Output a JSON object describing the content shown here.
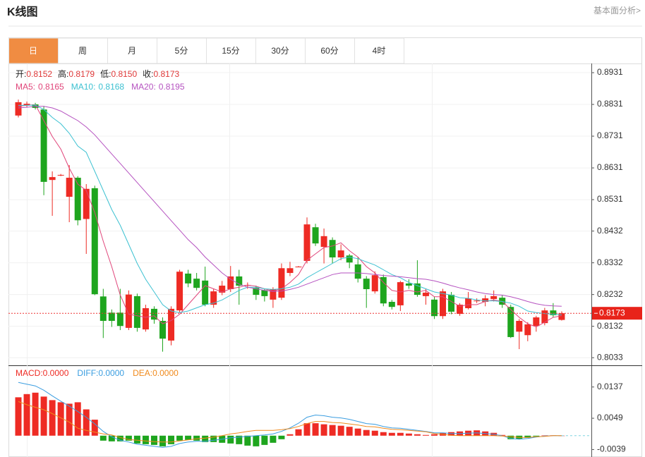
{
  "header": {
    "title": "K线图",
    "link": "基本面分析>"
  },
  "tabs": [
    "日",
    "周",
    "月",
    "5分",
    "15分",
    "30分",
    "60分",
    "4时"
  ],
  "active_tab": "日",
  "chart_data": [
    {
      "type": "candlestick",
      "info": [
        {
          "label": "开:",
          "value": "0.8152"
        },
        {
          "label": "高:",
          "value": "0.8179"
        },
        {
          "label": "低:",
          "value": "0.8150"
        },
        {
          "label": "收:",
          "value": "0.8173"
        }
      ],
      "up_color": "#ee2b24",
      "down_color": "#1ea51e",
      "open": [
        0.8796,
        0.8829,
        0.8831,
        0.8815,
        0.8593,
        0.8607,
        0.854,
        0.86,
        0.847,
        0.8567,
        0.8226,
        0.8175,
        0.8175,
        0.8127,
        0.8227,
        0.8122,
        0.8187,
        0.8149,
        0.8087,
        0.8182,
        0.8298,
        0.8282,
        0.8276,
        0.82,
        0.8238,
        0.8249,
        0.8289,
        0.826,
        0.8253,
        0.8246,
        0.8216,
        0.8222,
        0.83,
        0.832,
        0.8338,
        0.8444,
        0.8382,
        0.8404,
        0.8349,
        0.8355,
        0.8327,
        0.8282,
        0.8242,
        0.8287,
        0.8209,
        0.8198,
        0.8267,
        0.8267,
        0.8227,
        0.8216,
        0.8164,
        0.8231,
        0.8171,
        0.8189,
        0.8211,
        0.8209,
        0.8218,
        0.8222,
        0.8193,
        0.8115,
        0.8104,
        0.8133,
        0.8142,
        0.8182,
        0.8152
      ],
      "high": [
        0.8846,
        0.884,
        0.8836,
        0.8826,
        0.862,
        0.8612,
        0.864,
        0.8605,
        0.858,
        0.8575,
        0.825,
        0.8185,
        0.825,
        0.8245,
        0.8235,
        0.82,
        0.8195,
        0.816,
        0.8195,
        0.831,
        0.831,
        0.83,
        0.832,
        0.825,
        0.8275,
        0.8322,
        0.831,
        0.827,
        0.826,
        0.825,
        0.8255,
        0.833,
        0.8335,
        0.8322,
        0.8475,
        0.8455,
        0.844,
        0.8412,
        0.839,
        0.836,
        0.835,
        0.829,
        0.8305,
        0.8295,
        0.8215,
        0.8275,
        0.828,
        0.834,
        0.825,
        0.8225,
        0.825,
        0.824,
        0.8205,
        0.824,
        0.822,
        0.823,
        0.8245,
        0.823,
        0.82,
        0.8155,
        0.8145,
        0.8165,
        0.819,
        0.8205,
        0.8179
      ],
      "low": [
        0.879,
        0.8822,
        0.8815,
        0.8545,
        0.848,
        0.8605,
        0.846,
        0.845,
        0.836,
        0.823,
        0.8095,
        0.813,
        0.812,
        0.812,
        0.8115,
        0.8115,
        0.814,
        0.8052,
        0.8072,
        0.8175,
        0.8255,
        0.8245,
        0.8195,
        0.819,
        0.823,
        0.824,
        0.82,
        0.825,
        0.8215,
        0.821,
        0.819,
        0.8215,
        0.829,
        0.8318,
        0.833,
        0.8385,
        0.833,
        0.833,
        0.834,
        0.8315,
        0.827,
        0.819,
        0.8235,
        0.8195,
        0.8185,
        0.818,
        0.825,
        0.8225,
        0.82,
        0.8155,
        0.8155,
        0.817,
        0.8165,
        0.8185,
        0.8205,
        0.8195,
        0.821,
        0.819,
        0.8095,
        0.806,
        0.8085,
        0.8115,
        0.8135,
        0.816,
        0.815
      ],
      "close": [
        0.8838,
        0.8833,
        0.882,
        0.8587,
        0.8602,
        0.8609,
        0.86,
        0.8466,
        0.8565,
        0.8233,
        0.8149,
        0.8149,
        0.8133,
        0.8232,
        0.8127,
        0.8189,
        0.8153,
        0.8093,
        0.8187,
        0.8304,
        0.8267,
        0.8253,
        0.82,
        0.8242,
        0.826,
        0.8289,
        0.826,
        0.8262,
        0.8231,
        0.8227,
        0.8249,
        0.8315,
        0.8315,
        0.832,
        0.8453,
        0.8393,
        0.8416,
        0.8349,
        0.8371,
        0.8333,
        0.8282,
        0.8249,
        0.8293,
        0.8204,
        0.8193,
        0.8271,
        0.826,
        0.8231,
        0.8238,
        0.8164,
        0.8242,
        0.8178,
        0.82,
        0.822,
        0.8213,
        0.822,
        0.8227,
        0.82,
        0.8098,
        0.8149,
        0.8138,
        0.816,
        0.8182,
        0.8167,
        0.8173
      ],
      "series": [
        {
          "name": "MA5:",
          "current": "0.8165",
          "color": "#e0457a",
          "values": [
            0.8825,
            0.8828,
            0.883,
            0.878,
            0.873,
            0.869,
            0.863,
            0.858,
            0.856,
            0.849,
            0.84,
            0.832,
            0.823,
            0.817,
            0.8165,
            0.816,
            0.8165,
            0.814,
            0.815,
            0.817,
            0.82,
            0.823,
            0.826,
            0.825,
            0.824,
            0.825,
            0.8255,
            0.8262,
            0.8258,
            0.825,
            0.8243,
            0.825,
            0.827,
            0.8295,
            0.834,
            0.836,
            0.838,
            0.8385,
            0.8395,
            0.837,
            0.835,
            0.832,
            0.83,
            0.827,
            0.8245,
            0.824,
            0.8245,
            0.824,
            0.8245,
            0.8225,
            0.8225,
            0.821,
            0.8195,
            0.82,
            0.82,
            0.821,
            0.8215,
            0.821,
            0.8185,
            0.816,
            0.814,
            0.813,
            0.8145,
            0.816,
            0.8165
          ]
        },
        {
          "name": "MA10:",
          "current": "0.8168",
          "color": "#3cc1d1",
          "values": [
            0.8828,
            0.8828,
            0.8829,
            0.8815,
            0.879,
            0.877,
            0.874,
            0.87,
            0.868,
            0.862,
            0.856,
            0.85,
            0.845,
            0.839,
            0.833,
            0.828,
            0.824,
            0.82,
            0.818,
            0.8175,
            0.818,
            0.819,
            0.82,
            0.8205,
            0.8215,
            0.823,
            0.8245,
            0.8255,
            0.8255,
            0.825,
            0.8248,
            0.825,
            0.8255,
            0.8265,
            0.8285,
            0.83,
            0.8315,
            0.833,
            0.8345,
            0.835,
            0.8345,
            0.8335,
            0.8325,
            0.831,
            0.8295,
            0.8285,
            0.827,
            0.826,
            0.825,
            0.824,
            0.8235,
            0.823,
            0.8222,
            0.822,
            0.8215,
            0.8212,
            0.8212,
            0.821,
            0.8205,
            0.8195,
            0.818,
            0.8175,
            0.8172,
            0.817,
            0.8168
          ]
        },
        {
          "name": "MA20:",
          "current": "0.8195",
          "color": "#b552c0",
          "values": [
            0.882,
            0.8822,
            0.8825,
            0.8825,
            0.882,
            0.881,
            0.8795,
            0.878,
            0.876,
            0.8735,
            0.8705,
            0.8675,
            0.8645,
            0.8615,
            0.8585,
            0.8555,
            0.8525,
            0.8495,
            0.8465,
            0.8435,
            0.8405,
            0.838,
            0.835,
            0.8325,
            0.83,
            0.828,
            0.8265,
            0.8255,
            0.825,
            0.8245,
            0.8242,
            0.8243,
            0.8248,
            0.8255,
            0.8265,
            0.8275,
            0.8285,
            0.8295,
            0.83,
            0.83,
            0.83,
            0.8298,
            0.8295,
            0.8292,
            0.829,
            0.8288,
            0.8285,
            0.8282,
            0.828,
            0.8275,
            0.8268,
            0.826,
            0.8253,
            0.8247,
            0.824,
            0.8235,
            0.8232,
            0.823,
            0.8225,
            0.8218,
            0.821,
            0.8203,
            0.8198,
            0.8196,
            0.8195
          ]
        }
      ],
      "last_price": 0.8173,
      "ylim": [
        0.8009,
        0.896
      ],
      "yticks": [
        0.8931,
        0.8831,
        0.8731,
        0.8631,
        0.8531,
        0.8432,
        0.8332,
        0.8232,
        0.8132,
        0.8033
      ],
      "grid": true
    },
    {
      "type": "macd",
      "series": [
        {
          "name": "MACD:",
          "current": "0.0000",
          "color": "#ee2b24",
          "negative_color": "#1ea51e",
          "values": [
            0.0108,
            0.0117,
            0.0121,
            0.011,
            0.01,
            0.0094,
            0.009,
            0.0094,
            0.0074,
            0.0045,
            -0.0014,
            -0.0016,
            -0.0016,
            -0.0014,
            -0.0022,
            -0.0024,
            -0.0026,
            -0.003,
            -0.0024,
            -0.0014,
            -0.0012,
            -0.0014,
            -0.0018,
            -0.0018,
            -0.002,
            -0.0022,
            -0.0024,
            -0.0028,
            -0.003,
            -0.0026,
            -0.002,
            -0.001,
            0.0004,
            0.0018,
            0.0035,
            0.0035,
            0.0032,
            0.003,
            0.0028,
            0.0025,
            0.002,
            0.0016,
            0.0014,
            0.001,
            0.0008,
            0.0008,
            0.0006,
            0.0004,
            0.0002,
            0.0004,
            0.0008,
            0.001,
            0.0012,
            0.0014,
            0.0015,
            0.0012,
            0.0008,
            0.0002,
            -0.001,
            -0.001,
            -0.0006,
            -0.0002,
            0.0001,
            0.0001,
            0
          ]
        },
        {
          "name": "DIFF:",
          "current": "0.0000",
          "color": "#3a9de0",
          "values": [
            0.015,
            0.0145,
            0.014,
            0.0128,
            0.0112,
            0.0097,
            0.0083,
            0.0068,
            0.0052,
            0.0033,
            0.0012,
            -0.0003,
            -0.0013,
            -0.0018,
            -0.0024,
            -0.0027,
            -0.003,
            -0.0033,
            -0.003,
            -0.0022,
            -0.0018,
            -0.0016,
            -0.0016,
            -0.0013,
            -0.001,
            -0.0006,
            -0.0004,
            -0.0002,
            0,
            0.0002,
            0.0005,
            0.0012,
            0.0022,
            0.0035,
            0.0052,
            0.0058,
            0.0056,
            0.0052,
            0.005,
            0.0046,
            0.004,
            0.0034,
            0.0032,
            0.0026,
            0.0022,
            0.0021,
            0.0018,
            0.0015,
            0.0012,
            0.0008,
            0.0008,
            0.0006,
            0.0006,
            0.0007,
            0.0008,
            0.0006,
            0.0004,
            0,
            -0.0008,
            -0.001,
            -0.0008,
            -0.0004,
            -0.0001,
            0,
            0
          ]
        },
        {
          "name": "DEA:",
          "current": "0.0000",
          "color": "#f08a1c",
          "values": [
            0.0096,
            0.0087,
            0.008,
            0.0073,
            0.0062,
            0.005,
            0.0038,
            0.0021,
            0.0015,
            0.001,
            0.0005,
            0.0002,
            -0.0005,
            -0.0011,
            -0.0013,
            -0.0015,
            -0.0017,
            -0.0018,
            -0.0018,
            -0.0015,
            -0.0012,
            -0.0009,
            -0.0007,
            -0.0004,
            0,
            0.0005,
            0.0008,
            0.0012,
            0.0015,
            0.0015,
            0.0015,
            0.0017,
            0.002,
            0.0026,
            0.0034,
            0.004,
            0.004,
            0.0037,
            0.0036,
            0.0033,
            0.003,
            0.0026,
            0.0025,
            0.0021,
            0.0018,
            0.0017,
            0.0015,
            0.0013,
            0.0011,
            0.0006,
            0.0004,
            0.0001,
            0,
            0,
            0,
            0,
            0,
            -0.0001,
            -0.0003,
            -0.0005,
            -0.0005,
            -0.0003,
            -0.0002,
            0,
            0
          ]
        }
      ],
      "ylim": [
        -0.006,
        0.0196
      ],
      "yticks": [
        0.0137,
        0.0049,
        -0.0039
      ]
    }
  ]
}
